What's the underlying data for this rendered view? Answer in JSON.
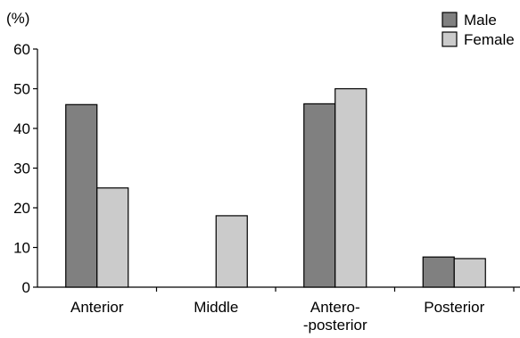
{
  "chart_data": {
    "type": "bar",
    "ylabel": "(%)",
    "ylim": [
      0,
      60
    ],
    "yticks": [
      0,
      10,
      20,
      30,
      40,
      50,
      60
    ],
    "categories": [
      [
        "Anterior"
      ],
      [
        "Middle"
      ],
      [
        "Antero-",
        "-posterior"
      ],
      [
        "Posterior"
      ]
    ],
    "series": [
      {
        "name": "Male",
        "color": "#808080",
        "values": [
          46,
          null,
          46.2,
          7.6
        ]
      },
      {
        "name": "Female",
        "color": "#cbcbcb",
        "values": [
          25,
          18,
          50,
          7.2
        ]
      }
    ],
    "legend_position": "top-right",
    "grid": false
  }
}
